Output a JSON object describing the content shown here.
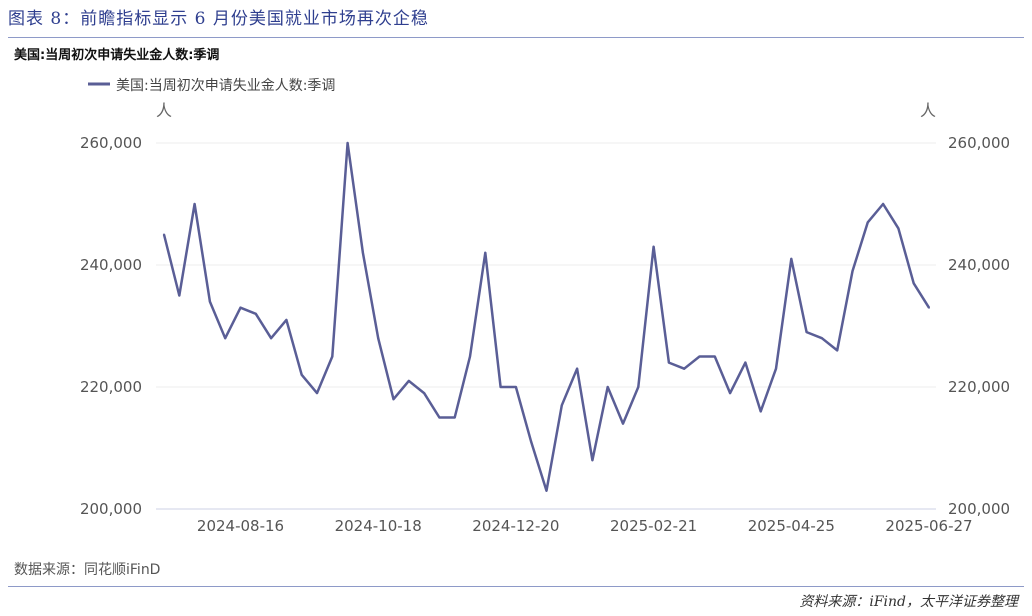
{
  "figure_title": "图表 8：前瞻指标显示 6 月份美国就业市场再次企稳",
  "source_left": "数据来源：同花顺iFinD",
  "source_right": "资料来源：iFind，太平洋证券整理",
  "colors": {
    "line": "#5a5e96",
    "title": "#2f3f8f",
    "grid": "#eeeeee"
  },
  "chart_data": {
    "type": "line",
    "title": "美国:当周初次申请失业金人数:季调",
    "legend": [
      "美国:当周初次申请失业金人数:季调"
    ],
    "legend_position": "top-left",
    "y_unit_left": "人",
    "y_unit_right": "人",
    "ylim": [
      200000,
      260000
    ],
    "yticks": [
      "200,000",
      "220,000",
      "240,000",
      "260,000"
    ],
    "xtick_labels": [
      "2024-08-16",
      "2024-10-18",
      "2024-12-20",
      "2025-02-21",
      "2025-04-25",
      "2025-06-27"
    ],
    "grid": true,
    "x_start": "2024-07-12",
    "x_end": "2025-06-27",
    "frequency": "weekly",
    "series": [
      {
        "name": "美国:当周初次申请失业金人数:季调",
        "values": [
          245000,
          235000,
          250000,
          234000,
          228000,
          233000,
          232000,
          228000,
          231000,
          222000,
          219000,
          225000,
          260000,
          242000,
          228000,
          218000,
          221000,
          219000,
          215000,
          215000,
          225000,
          242000,
          220000,
          220000,
          211000,
          203000,
          217000,
          223000,
          208000,
          220000,
          214000,
          220000,
          243000,
          224000,
          223000,
          225000,
          225000,
          219000,
          224000,
          216000,
          223000,
          241000,
          229000,
          228000,
          226000,
          239000,
          247000,
          250000,
          246000,
          237000,
          233000
        ]
      }
    ]
  }
}
